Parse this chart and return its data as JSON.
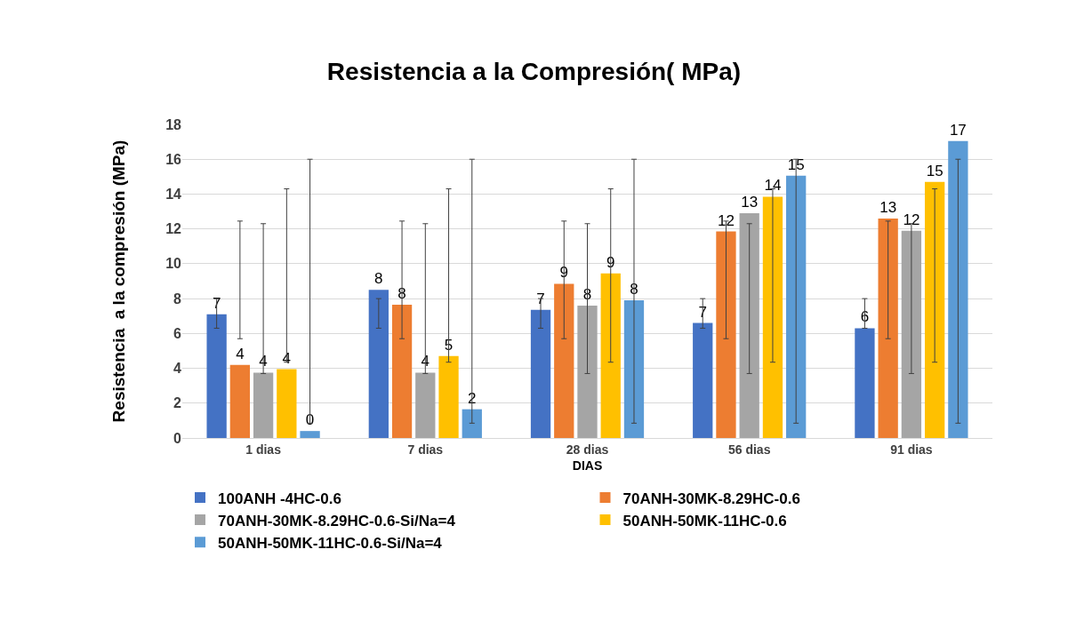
{
  "chart_data": {
    "type": "bar",
    "title": "Resistencia a la Compresión( MPa)",
    "xlabel": "DIAS",
    "ylabel": "Resistencia  a la compresión (MPa)",
    "categories": [
      "1 dias",
      "7 dias",
      "28 dias",
      "56 dias",
      "91 dias"
    ],
    "series": [
      {
        "name": "100ANH -4HC-0.6",
        "color": "#4472c4",
        "values": [
          7.1,
          8.5,
          7.35,
          6.6,
          6.3
        ],
        "value_labels": [
          "7",
          "8",
          "7",
          "7",
          "6"
        ],
        "errors": [
          [
            6.3,
            8.0
          ],
          [
            6.3,
            8.0
          ],
          [
            6.3,
            8.0
          ],
          [
            6.3,
            8.0
          ],
          [
            6.3,
            8.0
          ]
        ]
      },
      {
        "name": "70ANH-30MK-8.29HC-0.6",
        "color": "#ed7d31",
        "values": [
          4.2,
          7.65,
          8.85,
          11.85,
          12.6
        ],
        "value_labels": [
          "4",
          "8",
          "9",
          "12",
          "13"
        ],
        "errors": [
          [
            5.7,
            12.45
          ],
          [
            5.7,
            12.45
          ],
          [
            5.7,
            12.45
          ],
          [
            5.7,
            12.45
          ],
          [
            5.7,
            12.45
          ]
        ]
      },
      {
        "name": "70ANH-30MK-8.29HC-0.6-Si/Na=4",
        "color": "#a5a5a5",
        "values": [
          3.75,
          3.75,
          7.6,
          12.9,
          11.9
        ],
        "value_labels": [
          "4",
          "4",
          "8",
          "13",
          "12"
        ],
        "errors": [
          [
            3.7,
            12.3
          ],
          [
            3.7,
            12.3
          ],
          [
            3.7,
            12.3
          ],
          [
            3.7,
            12.3
          ],
          [
            3.7,
            12.3
          ]
        ]
      },
      {
        "name": "50ANH-50MK-11HC-0.6",
        "color": "#ffc000",
        "values": [
          3.95,
          4.7,
          9.45,
          13.85,
          14.7
        ],
        "value_labels": [
          "4",
          "5",
          "9",
          "14",
          "15"
        ],
        "errors": [
          [
            4.35,
            14.3
          ],
          [
            4.35,
            14.3
          ],
          [
            4.35,
            14.3
          ],
          [
            4.35,
            14.3
          ],
          [
            4.35,
            14.3
          ]
        ]
      },
      {
        "name": "50ANH-50MK-11HC-0.6-Si/Na=4",
        "color": "#5b9bd5",
        "values": [
          0.4,
          1.65,
          7.9,
          15.05,
          17.05
        ],
        "value_labels": [
          "0",
          "2",
          "8",
          "15",
          "17"
        ],
        "errors": [
          [
            0.85,
            16.0
          ],
          [
            0.85,
            16.0
          ],
          [
            0.85,
            16.0
          ],
          [
            0.85,
            16.0
          ],
          [
            0.85,
            16.0
          ]
        ]
      }
    ],
    "ylim": [
      0,
      18
    ],
    "yticks": [
      0,
      2,
      4,
      6,
      8,
      10,
      12,
      14,
      16,
      18
    ],
    "grid": "y",
    "legend": "bottom"
  }
}
